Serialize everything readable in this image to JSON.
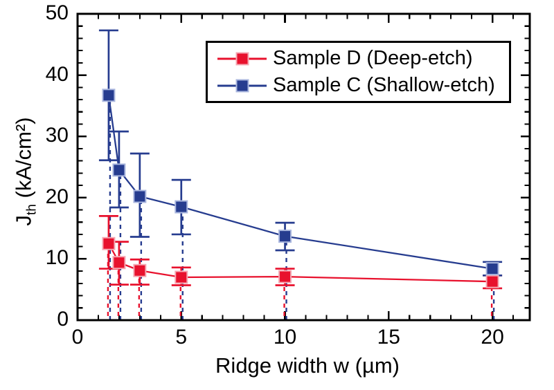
{
  "chart_data": {
    "type": "line",
    "title": "",
    "xlabel": "Ridge width w (µm)",
    "ylabel": "Jth (kA/cm²)",
    "ylabel_parts": {
      "symbol": "J",
      "subscript": "th",
      "units": " (kA/cm²)"
    },
    "xlim": [
      0,
      21.8
    ],
    "ylim": [
      0,
      50
    ],
    "x_major_ticks": [
      0,
      5,
      10,
      15,
      20
    ],
    "x_minor_step": 1,
    "y_major_ticks": [
      0,
      10,
      20,
      30,
      40,
      50
    ],
    "y_minor_step": 2,
    "grid": false,
    "frame": true,
    "tick_direction": "in",
    "background": "#ffffff",
    "axis_color": "#000000",
    "legend_position": "top-center",
    "series": [
      {
        "name": "Sample D (Deep-etch)",
        "color": "#e8112d",
        "marker_edge": "#f5a7b2",
        "marker": "square",
        "line_style": "solid",
        "drop_lines": "dashed",
        "x": [
          1.5,
          2,
          3,
          5,
          10,
          20
        ],
        "y": [
          12.5,
          9.4,
          8.1,
          7.0,
          7.1,
          6.3
        ],
        "y_err_low": [
          8.4,
          5.8,
          5.8,
          5.7,
          5.7,
          5.2
        ],
        "y_err_high": [
          17.0,
          12.8,
          9.9,
          8.6,
          8.4,
          7.3
        ]
      },
      {
        "name": "Sample C (Shallow-etch)",
        "color": "#263c8f",
        "marker_edge": "#a9b6de",
        "marker": "square",
        "line_style": "solid",
        "drop_lines": "dashed",
        "x": [
          1.5,
          2,
          3,
          5,
          10,
          20
        ],
        "y": [
          36.7,
          24.5,
          20.2,
          18.5,
          13.7,
          8.4
        ],
        "y_err_low": [
          26.1,
          18.4,
          13.6,
          14.0,
          11.4,
          7.3
        ],
        "y_err_high": [
          47.3,
          30.8,
          27.2,
          22.9,
          15.9,
          9.5
        ]
      }
    ]
  }
}
